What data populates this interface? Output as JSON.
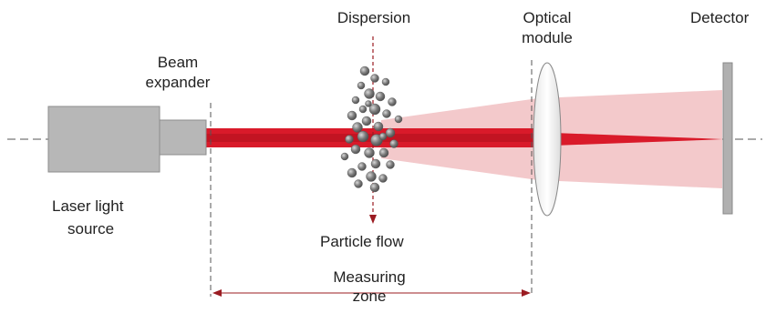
{
  "labels": {
    "dispersion": "Dispersion",
    "optical_module_line1": "Optical",
    "optical_module_line2": "module",
    "detector": "Detector",
    "beam_expander_line1": "Beam",
    "beam_expander_line2": "expander",
    "laser_source_line1": "Laser light",
    "laser_source_line2": "source",
    "particle_flow": "Particle flow",
    "measuring_zone_line1": "Measuring",
    "measuring_zone_line2": "zone"
  },
  "colors": {
    "laser_body": "#b7b7b7",
    "laser_edge": "#8c8c8c",
    "beam": "#d91a2a",
    "beam_dark": "#b3101e",
    "scatter_cone": "#f3c9cb",
    "particle": "#777777",
    "detector": "#b0b0b0",
    "arrow": "#9b1c22",
    "dashed_line": "#555555"
  },
  "icons": {
    "laser": "laser-source-icon",
    "lens": "lens-icon",
    "detector": "detector-plate-icon"
  }
}
